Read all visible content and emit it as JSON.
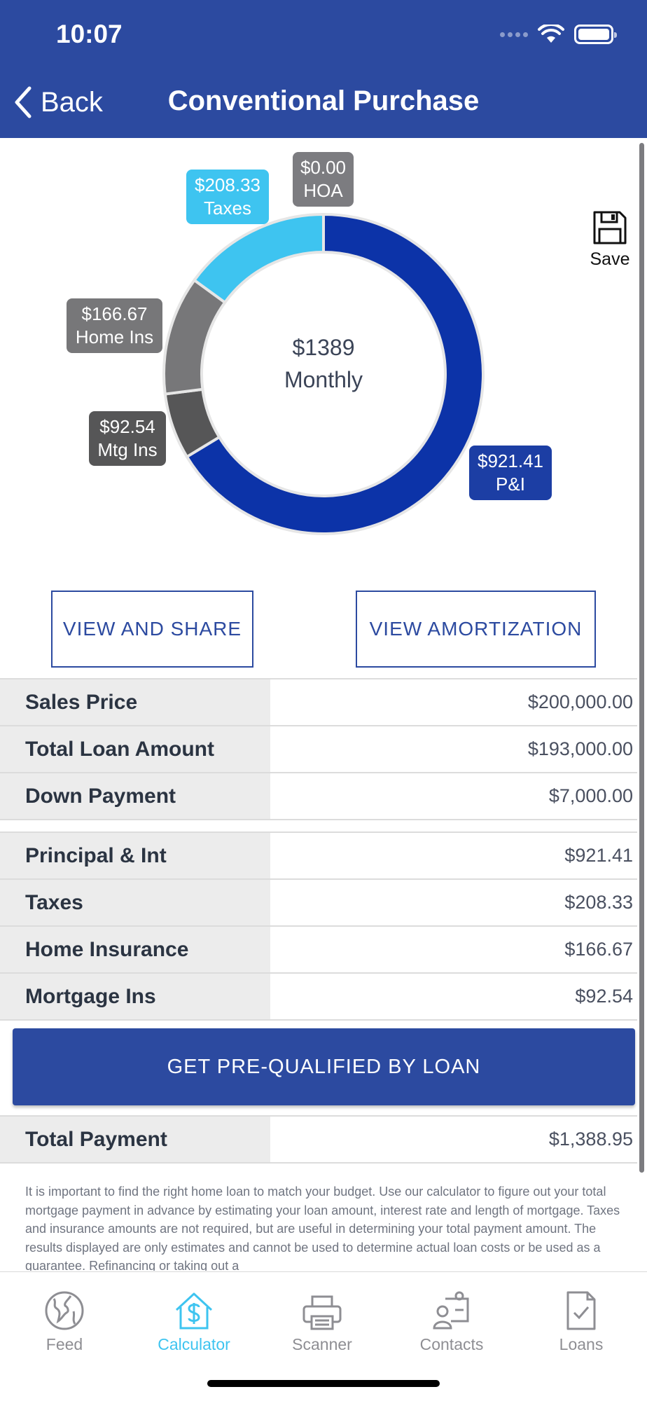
{
  "status": {
    "time": "10:07"
  },
  "nav": {
    "back_label": "Back",
    "title": "Conventional Purchase"
  },
  "save_label": "Save",
  "chart_data": {
    "type": "pie",
    "center_value": "$1389",
    "center_label": "Monthly",
    "slices": [
      {
        "name": "P&I",
        "value": 921.41,
        "label_value": "$921.41",
        "label_name": "P&I",
        "color": "#0c33a8"
      },
      {
        "name": "Mtg Ins",
        "value": 92.54,
        "label_value": "$92.54",
        "label_name": "Mtg Ins",
        "color": "#565657"
      },
      {
        "name": "Home Ins",
        "value": 166.67,
        "label_value": "$166.67",
        "label_name": "Home Ins",
        "color": "#777779"
      },
      {
        "name": "Taxes",
        "value": 208.33,
        "label_value": "$208.33",
        "label_name": "Taxes",
        "color": "#3ec4f0"
      },
      {
        "name": "HOA",
        "value": 0.0,
        "label_value": "$0.00",
        "label_name": "HOA",
        "color": "#7c7c80"
      }
    ]
  },
  "buttons": {
    "view_share": "VIEW AND SHARE",
    "view_amortization": "VIEW AMORTIZATION",
    "prequalify": "GET PRE-QUALIFIED BY LOAN"
  },
  "loan_rows": [
    {
      "label": "Sales Price",
      "value": "$200,000.00"
    },
    {
      "label": "Total Loan Amount",
      "value": "$193,000.00"
    },
    {
      "label": "Down Payment",
      "value": "$7,000.00"
    }
  ],
  "payment_rows": [
    {
      "label": "Principal & Int",
      "value": "$921.41"
    },
    {
      "label": "Taxes",
      "value": "$208.33"
    },
    {
      "label": "Home Insurance",
      "value": "$166.67"
    },
    {
      "label": "Mortgage Ins",
      "value": "$92.54"
    }
  ],
  "total": {
    "label": "Total Payment",
    "value": "$1,388.95"
  },
  "disclaimer": "It is important to find the right home loan to match your budget. Use our calculator to figure out your total mortgage payment in advance by estimating your loan amount, interest rate and length of mortgage. Taxes and insurance amounts are not required, but are useful in determining your total payment amount. The results displayed are only estimates and cannot be used to determine actual loan costs or be used as a guarantee. Refinancing or taking out a",
  "tabs": [
    {
      "label": "Feed",
      "icon": "globe-icon",
      "active": false
    },
    {
      "label": "Calculator",
      "icon": "calculator-house-icon",
      "active": true
    },
    {
      "label": "Scanner",
      "icon": "printer-icon",
      "active": false
    },
    {
      "label": "Contacts",
      "icon": "contacts-icon",
      "active": false
    },
    {
      "label": "Loans",
      "icon": "document-check-icon",
      "active": false
    }
  ],
  "colors": {
    "header": "#2c4aa0",
    "accent": "#3ec4f0"
  }
}
